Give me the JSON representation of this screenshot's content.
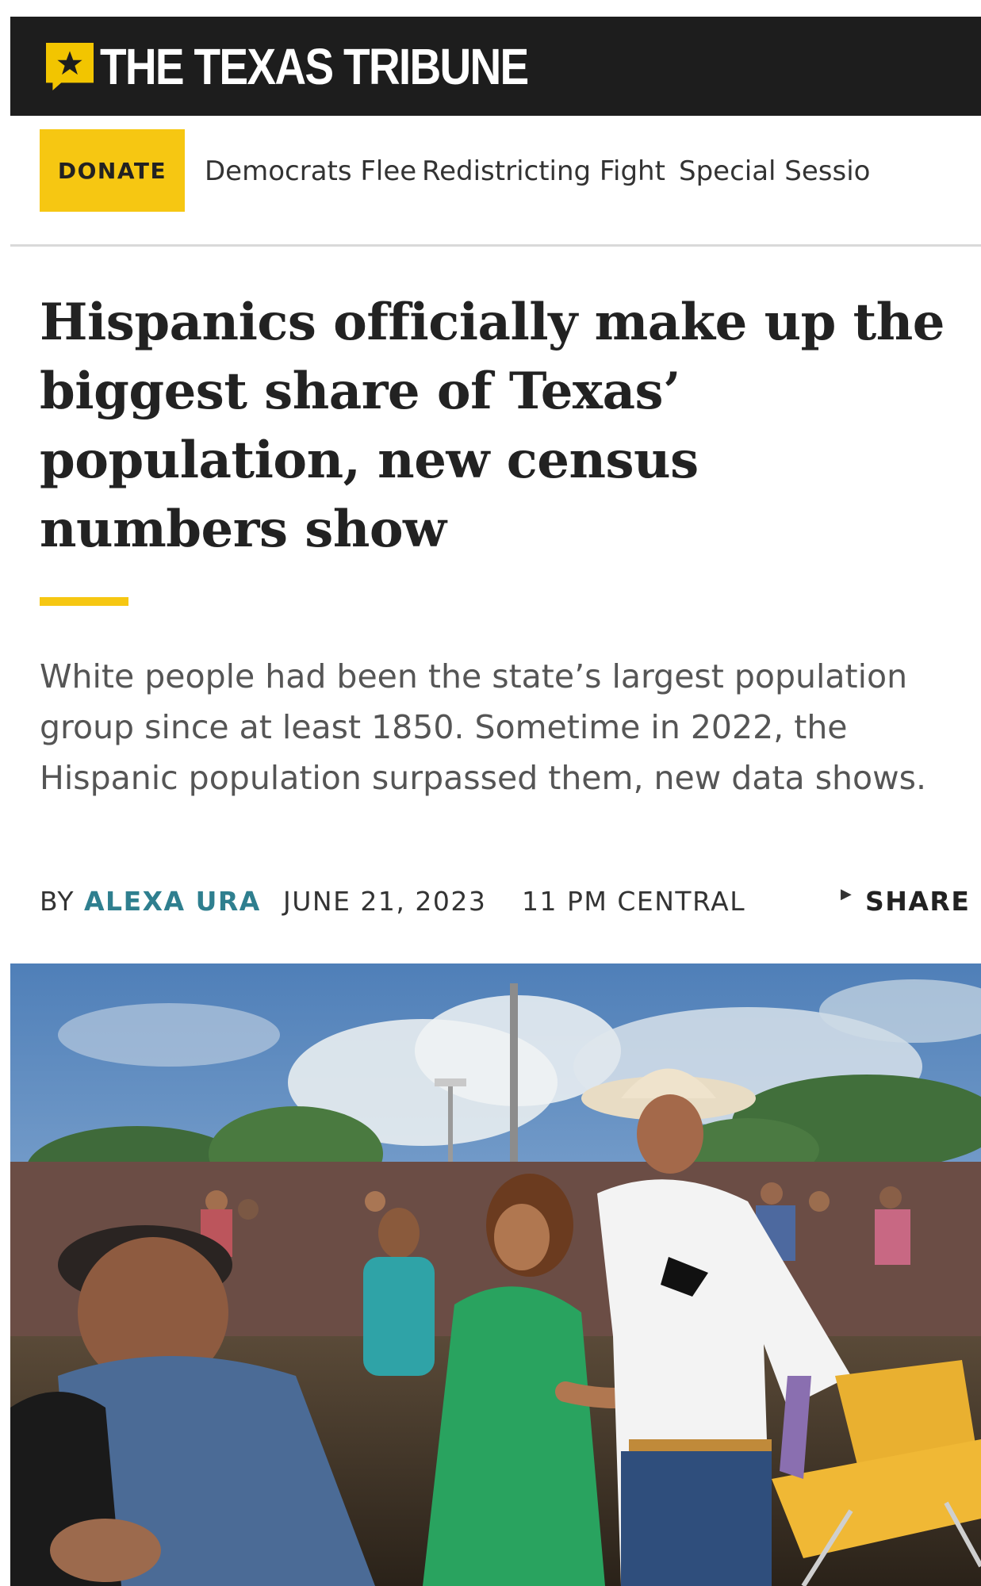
{
  "brand": {
    "name": "THE TEXAS TRIBUNE",
    "colors": {
      "header_bg": "#1d1d1d",
      "accent": "#f6c712",
      "author_link": "#2f7f8f"
    }
  },
  "nav": {
    "donate_label": "DONATE",
    "items": [
      "Democrats Flee",
      "Redistricting Fight",
      "Special Sessio"
    ]
  },
  "article": {
    "headline": "Hispanics officially make up the biggest share of Texas’ population, new census numbers show",
    "dek": "White people had been the state’s largest population group since at least 1850. Sometime in 2022, the Hispanic population surpassed them, new data shows.",
    "byline_prefix": "BY",
    "author": "ALEXA URA",
    "date": "JUNE 21, 2023",
    "time": "11 PM CENTRAL",
    "share_label": "SHARE"
  },
  "icons": {
    "logo": "star-icon",
    "share": "triangle-right-icon"
  }
}
